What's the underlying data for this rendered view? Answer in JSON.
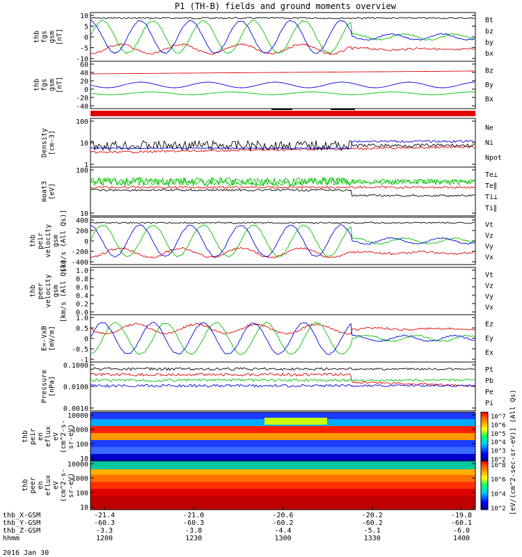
{
  "chart_data": {
    "type": "line",
    "title": "P1 (TH-B) fields and ground moments overview",
    "x_ticks": [
      "1200",
      "1230",
      "1300",
      "1330",
      "1400"
    ],
    "date_label": "2016 Jan 30",
    "ephemeris": [
      {
        "label": "thb_X-GSM",
        "values": [
          "-21.4",
          "-21.0",
          "-20.6",
          "-20.2",
          "-19.8"
        ]
      },
      {
        "label": "thb_Y-GSM",
        "values": [
          "-60.3",
          "-60.3",
          "-60.2",
          "-60.2",
          "-60.1"
        ]
      },
      {
        "label": "thb_Z-GSM",
        "values": [
          "-3.3",
          "-3.8",
          "-4.4",
          "-5.1",
          "-6.0"
        ]
      },
      {
        "label": "hhmm",
        "values": [
          "1200",
          "1230",
          "1300",
          "1330",
          "1400"
        ]
      }
    ],
    "panels": [
      {
        "id": "fgs-gsm",
        "ylabel": [
          "thb",
          "fgs",
          "gsm",
          "[nT]"
        ],
        "yticks": [
          "10",
          "5",
          "0",
          "-5",
          "-10"
        ],
        "legend": [
          {
            "name": "Bt",
            "color": "#000000"
          },
          {
            "name": "bz",
            "color": "#e00000"
          },
          {
            "name": "by",
            "color": "#00c000"
          },
          {
            "name": "bx",
            "color": "#0000e0"
          }
        ]
      },
      {
        "id": "fgs-dsl",
        "ylabel": [
          "thb",
          "fgs",
          "gsm",
          "[nT]"
        ],
        "yticks": [
          "60",
          "40",
          "20",
          "0",
          "-20",
          "-40"
        ],
        "legend": [
          {
            "name": "Bz",
            "color": "#e00000"
          },
          {
            "name": "By",
            "color": "#00c000"
          },
          {
            "name": "Bx",
            "color": "#0000e0"
          }
        ]
      },
      {
        "id": "density",
        "ylabel": [
          "Density",
          "[cm-3]"
        ],
        "yticks": [
          "100",
          "10",
          "1"
        ],
        "legend": [
          {
            "name": "Ne",
            "color": "#e00000"
          },
          {
            "name": "Ni",
            "color": "#000000"
          },
          {
            "name": "Npot",
            "color": "#0000e0"
          }
        ]
      },
      {
        "id": "temperature",
        "ylabel": [
          "moat3",
          "[eV]"
        ],
        "yticks": [
          "100",
          "10"
        ],
        "legend": [
          {
            "name": "Te⊥",
            "color": "#e00000"
          },
          {
            "name": "Te∥",
            "color": "#000000"
          },
          {
            "name": "Ti⊥",
            "color": "#00c000"
          },
          {
            "name": "Ti∥",
            "color": "#00c000"
          }
        ]
      },
      {
        "id": "ion-velocity",
        "ylabel": [
          "thb",
          "peir",
          "velocity",
          "gsm",
          "[km/s (All Qs)]"
        ],
        "yticks": [
          "400",
          "200",
          "0",
          "-200",
          "-400"
        ],
        "legend": [
          {
            "name": "Vt",
            "color": "#000000"
          },
          {
            "name": "Vz",
            "color": "#e00000"
          },
          {
            "name": "Vy",
            "color": "#00c000"
          },
          {
            "name": "Vx",
            "color": "#0000e0"
          }
        ]
      },
      {
        "id": "electron-velocity",
        "ylabel": [
          "thb",
          "peer",
          "velocity",
          "gsm",
          "[km/s (All Qs)]"
        ],
        "yticks": [
          "1.0",
          "0.8",
          "0.6",
          "0.4",
          "0.2",
          "0.0"
        ],
        "legend": [
          {
            "name": "Vt",
            "color": "#000000"
          },
          {
            "name": "Vz",
            "color": "#e00000"
          },
          {
            "name": "Vy",
            "color": "#00c000"
          },
          {
            "name": "Vx",
            "color": "#0000e0"
          }
        ]
      },
      {
        "id": "efield",
        "ylabel": [
          "E=-VxB",
          "[mV/m]"
        ],
        "yticks": [
          "1.0",
          "0.5",
          "0",
          "-0.5",
          "-1"
        ],
        "legend": [
          {
            "name": "Ez",
            "color": "#e00000"
          },
          {
            "name": "Ey",
            "color": "#00c000"
          },
          {
            "name": "Ex",
            "color": "#0000e0"
          }
        ]
      },
      {
        "id": "pressure",
        "ylabel": [
          "Pressure",
          "[nPa]"
        ],
        "yticks": [
          "0.1000",
          "0.0100",
          "0.0010"
        ],
        "legend": [
          {
            "name": "Pt",
            "color": "#000000"
          },
          {
            "name": "Pb",
            "color": "#e00000"
          },
          {
            "name": "Pe",
            "color": "#00c000"
          },
          {
            "name": "Pi",
            "color": "#0000e0"
          }
        ]
      },
      {
        "id": "ion-spectrogram",
        "ylabel": [
          "thb",
          "peir",
          "en",
          "eflux",
          "eV",
          "(cm^2-s-",
          "sr-eV)"
        ],
        "yticks": [
          "10000",
          "1000",
          "100",
          "10"
        ]
      },
      {
        "id": "electron-spectrogram",
        "ylabel": [
          "thb",
          "peer",
          "en",
          "eflux",
          "eV",
          "(cm^2-s-",
          "sr-eV)"
        ],
        "yticks": [
          "10000",
          "1000",
          "100",
          "10"
        ]
      }
    ],
    "colorbars": [
      {
        "label": "[eV/(cm^2-sec-sr-eV)] (All Qs)",
        "ticks": [
          "10^7",
          "10^6",
          "10^5",
          "10^4",
          "10^3",
          "10^2"
        ]
      },
      {
        "label": "[eV/(cm^2-sec-sr-eV)]",
        "ticks": [
          "10^8",
          "10^6",
          "10^4",
          "10^2"
        ]
      }
    ]
  }
}
